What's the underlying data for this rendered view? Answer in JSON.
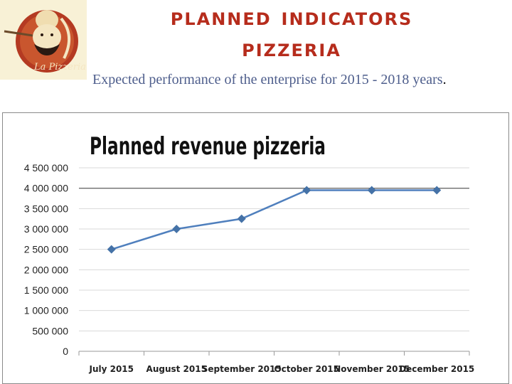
{
  "slide": {
    "title_line1": "planned indicators",
    "title_line2": "pizzeria",
    "subtitle_main": "Expected performance of the enterprise for 2015 - 2018 years",
    "subtitle_end": ".",
    "logo_text": "La Pizzeria"
  },
  "colors": {
    "title": "#b62c1c",
    "subtitle": "#4e5e8c",
    "line": "#4f7fbd",
    "marker": "#4572a7",
    "grid": "#d9d9d9"
  },
  "chart_data": {
    "type": "line",
    "title": "Planned revenue pizzeria",
    "categories": [
      "July 2015",
      "August 2015",
      "September 2015",
      "October 2015",
      "November 2015",
      "December 2015"
    ],
    "series": [
      {
        "values": [
          2500000,
          3000000,
          3250000,
          3950000,
          3950000,
          3950000
        ]
      }
    ],
    "ylim": [
      0,
      4500000
    ],
    "yticks": [
      0,
      500000,
      1000000,
      1500000,
      2000000,
      2500000,
      3000000,
      3500000,
      4000000,
      4500000
    ],
    "ytick_labels": [
      "0",
      "500 000",
      "1 000 000",
      "1 500 000",
      "2 000 000",
      "2 500 000",
      "3 000 000",
      "3 500 000",
      "4 000 000",
      "4 500 000"
    ],
    "grid": true,
    "highlight_gridline": 4000000,
    "legend": "none"
  }
}
